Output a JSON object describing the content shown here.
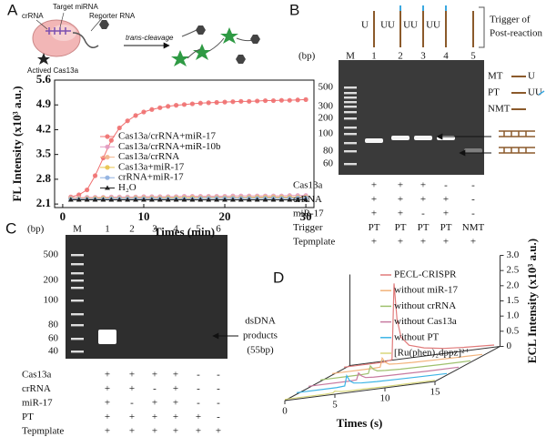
{
  "panel_labels": [
    "A",
    "B",
    "C",
    "D"
  ],
  "schematic_a": {
    "crrna": "crRNA",
    "target": "Target miRNA",
    "reporter": "Reporter RNA",
    "cas": "Actived Cas13a",
    "arrow": "trans-cleavage"
  },
  "chart_data": [
    {
      "type": "line",
      "xlabel": "Times (min)",
      "ylabel": "FL Intensity (x10³ a.u.)",
      "xlim": [
        -1,
        31
      ],
      "xticks": [
        0,
        10,
        20,
        30
      ],
      "ylim": [
        2.0,
        5.6
      ],
      "yticks": [
        2.1,
        2.8,
        3.5,
        4.2,
        4.9,
        5.6
      ],
      "x": [
        1,
        2,
        3,
        4,
        5,
        6,
        7,
        8,
        9,
        10,
        11,
        12,
        13,
        14,
        15,
        16,
        17,
        18,
        19,
        20,
        21,
        22,
        23,
        24,
        25,
        26,
        27,
        28,
        29,
        30
      ],
      "series": [
        {
          "name": "Cas13a/crRNA+miR-17",
          "color": "#f07070",
          "marker": "circle",
          "values": [
            2.3,
            2.36,
            2.5,
            2.9,
            3.4,
            3.9,
            4.25,
            4.45,
            4.6,
            4.7,
            4.77,
            4.82,
            4.86,
            4.89,
            4.91,
            4.93,
            4.95,
            4.96,
            4.97,
            4.98,
            4.99,
            5.0,
            5.0,
            5.01,
            5.02,
            5.02,
            5.03,
            5.03,
            5.04,
            5.05
          ]
        },
        {
          "name": "Cas13a/crRNA+miR-10b",
          "color": "#e29ac0",
          "marker": "circle",
          "values": [
            2.28,
            2.28,
            2.29,
            2.29,
            2.29,
            2.3,
            2.3,
            2.3,
            2.3,
            2.31,
            2.31,
            2.31,
            2.31,
            2.31,
            2.32,
            2.32,
            2.32,
            2.32,
            2.32,
            2.32,
            2.33,
            2.33,
            2.33,
            2.33,
            2.33,
            2.33,
            2.33,
            2.34,
            2.34,
            2.34
          ]
        },
        {
          "name": "Cas13a/crRNA",
          "color": "#f2b58c",
          "marker": "circle",
          "values": [
            2.26,
            2.26,
            2.26,
            2.27,
            2.27,
            2.27,
            2.27,
            2.27,
            2.28,
            2.28,
            2.28,
            2.28,
            2.28,
            2.28,
            2.28,
            2.29,
            2.29,
            2.29,
            2.29,
            2.29,
            2.29,
            2.29,
            2.29,
            2.3,
            2.3,
            2.3,
            2.3,
            2.3,
            2.3,
            2.3
          ]
        },
        {
          "name": "Cas13a+miR-17",
          "color": "#e8c44c",
          "marker": "circle",
          "values": [
            2.25,
            2.25,
            2.25,
            2.25,
            2.26,
            2.26,
            2.26,
            2.26,
            2.26,
            2.26,
            2.26,
            2.26,
            2.27,
            2.27,
            2.27,
            2.27,
            2.27,
            2.27,
            2.27,
            2.27,
            2.27,
            2.27,
            2.28,
            2.28,
            2.28,
            2.28,
            2.28,
            2.28,
            2.28,
            2.28
          ]
        },
        {
          "name": "crRNA+miR-17",
          "color": "#8fb0e0",
          "marker": "circle",
          "values": [
            2.24,
            2.24,
            2.24,
            2.24,
            2.24,
            2.25,
            2.25,
            2.25,
            2.25,
            2.25,
            2.25,
            2.25,
            2.25,
            2.25,
            2.25,
            2.25,
            2.26,
            2.26,
            2.26,
            2.26,
            2.26,
            2.26,
            2.26,
            2.26,
            2.26,
            2.26,
            2.26,
            2.26,
            2.27,
            2.27
          ]
        },
        {
          "name": "H₂O",
          "color": "#222222",
          "marker": "triangle",
          "values": [
            2.22,
            2.22,
            2.22,
            2.22,
            2.22,
            2.22,
            2.22,
            2.22,
            2.22,
            2.22,
            2.22,
            2.22,
            2.22,
            2.22,
            2.22,
            2.22,
            2.22,
            2.22,
            2.22,
            2.22,
            2.22,
            2.22,
            2.22,
            2.22,
            2.22,
            2.22,
            2.22,
            2.22,
            2.22,
            2.22
          ]
        }
      ]
    },
    {
      "type": "waterfall",
      "xlabel": "Times (s)",
      "ylabel": "ECL Intensity (x10³ a.u.)",
      "xlim": [
        0,
        15
      ],
      "xticks": [
        0,
        5,
        10,
        15
      ],
      "ylim": [
        0,
        3
      ],
      "yticks": [
        0,
        0.5,
        {
          "value": 1,
          "label": "1.0"
        },
        1.5,
        {
          "value": 2,
          "label": "2.0"
        },
        2.5,
        {
          "value": 3,
          "label": "3.0"
        }
      ],
      "x": [
        0,
        4,
        4.8,
        5,
        5.3,
        5.7,
        6.5,
        8,
        10,
        12,
        15
      ],
      "series": [
        {
          "name": "PECL-CRISPR",
          "color": "#e07b7b",
          "values": [
            0.05,
            0.05,
            0.1,
            2.6,
            1.4,
            0.8,
            0.5,
            0.35,
            0.25,
            0.2,
            0.15
          ]
        },
        {
          "name": "without miR-17",
          "color": "#f2b27a",
          "values": [
            0.05,
            0.05,
            0.06,
            0.35,
            0.2,
            0.12,
            0.1,
            0.08,
            0.07,
            0.06,
            0.05
          ]
        },
        {
          "name": "without crRNA",
          "color": "#9ec16d",
          "values": [
            0.05,
            0.05,
            0.06,
            0.3,
            0.18,
            0.11,
            0.09,
            0.07,
            0.06,
            0.05,
            0.05
          ]
        },
        {
          "name": "without Cas13a",
          "color": "#c77aa0",
          "values": [
            0.05,
            0.05,
            0.06,
            0.28,
            0.17,
            0.1,
            0.08,
            0.07,
            0.06,
            0.05,
            0.05
          ]
        },
        {
          "name": "without PT",
          "color": "#3cb4e6",
          "values": [
            0.05,
            0.05,
            0.07,
            0.4,
            0.22,
            0.13,
            0.1,
            0.08,
            0.07,
            0.06,
            0.05
          ]
        },
        {
          "name": "[Ru(phen)₂dppz]²⁺",
          "color": "#d8d77a",
          "values": [
            0.04,
            0.04,
            0.05,
            0.1,
            0.08,
            0.06,
            0.05,
            0.05,
            0.04,
            0.04,
            0.04
          ]
        }
      ]
    }
  ],
  "gel_b": {
    "bp_unit": "(bp)",
    "marker_lane": "M",
    "lanes": [
      "1",
      "2",
      "3",
      "4",
      "5"
    ],
    "bp_labels": [
      "500",
      "300",
      "200",
      "100",
      "80",
      "60"
    ],
    "strand_labels": [
      "U",
      "UU",
      "UU",
      "UU"
    ],
    "trigger_note": [
      "Trigger of",
      "Post-reaction"
    ],
    "key": [
      {
        "name": "MT",
        "mark": "U"
      },
      {
        "name": "PT",
        "mark": "UU"
      },
      {
        "name": "NMT"
      }
    ],
    "rows": [
      {
        "name": "Cas13a",
        "cells": [
          "+",
          "+",
          "+",
          "-",
          "-"
        ]
      },
      {
        "name": "crRNA",
        "cells": [
          "+",
          "+",
          "+",
          "+",
          "-"
        ]
      },
      {
        "name": "miR-17",
        "cells": [
          "+",
          "+",
          "-",
          "+",
          "-"
        ]
      },
      {
        "name": "Trigger",
        "cells": [
          "PT",
          "PT",
          "PT",
          "PT",
          "NMT"
        ]
      },
      {
        "name": "Tepmplate",
        "cells": [
          "+",
          "+",
          "+",
          "+",
          "+"
        ]
      }
    ]
  },
  "gel_c": {
    "bp_unit": "(bp)",
    "marker_lane": "M",
    "lanes": [
      "1",
      "2",
      "3",
      "4",
      "5",
      "6"
    ],
    "bp_labels": [
      "500",
      "200",
      "100",
      "80",
      "60",
      "40"
    ],
    "annotation": [
      "dsDNA",
      "products",
      "(55bp)"
    ],
    "rows": [
      {
        "name": "Cas13a",
        "cells": [
          "+",
          "+",
          "+",
          "+",
          "-",
          "-"
        ]
      },
      {
        "name": "crRNA",
        "cells": [
          "+",
          "+",
          "-",
          "+",
          "-",
          "-"
        ]
      },
      {
        "name": "miR-17",
        "cells": [
          "+",
          "-",
          "+",
          "+",
          "-",
          "-"
        ]
      },
      {
        "name": "PT",
        "cells": [
          "+",
          "+",
          "+",
          "+",
          "+",
          "-"
        ]
      },
      {
        "name": "Tepmplate",
        "cells": [
          "+",
          "+",
          "+",
          "+",
          "+",
          "+"
        ]
      }
    ]
  }
}
